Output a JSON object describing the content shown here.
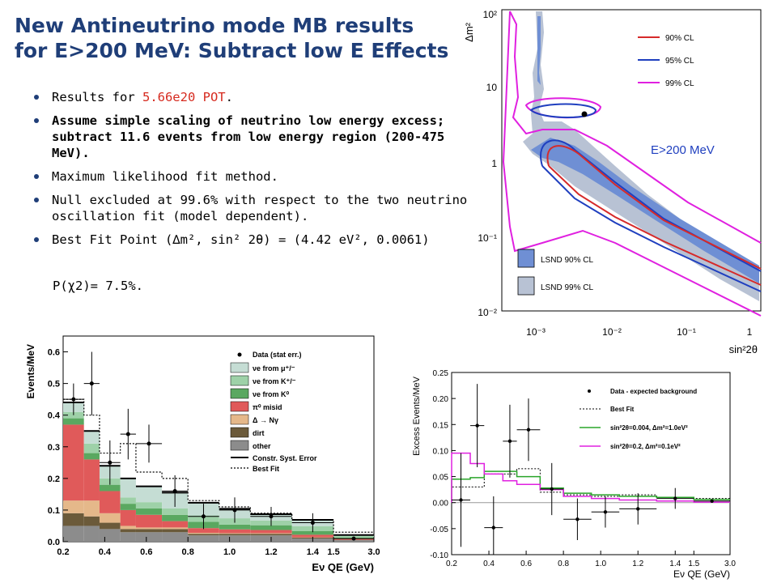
{
  "slide": {
    "title_line1": "New Antineutrino mode MB results",
    "title_line2": "for E>200 MeV:  Subtract low E Effects",
    "bullets": [
      {
        "prefix": "Results for ",
        "highlight": "5.66e20 POT",
        "suffix": "."
      },
      {
        "text": "Assume simple scaling of neutrino low energy excess; subtract 11.6 events from low energy region (200-475 MeV)."
      },
      {
        "text": "Maximum likelihood fit method."
      },
      {
        "text": "Null excluded at 99.6% with respect to the two neutrino oscillation fit (model dependent)."
      },
      {
        "text": "Best Fit Point (∆m², sin² 2θ) = (4.42 eV², 0.0061)"
      }
    ],
    "pchi": "P(χ2)= 7.5%."
  },
  "chart_data": [
    {
      "type": "contour",
      "xlabel": "sin²2θ",
      "ylabel": "Δm²",
      "xscale": "log",
      "yscale": "log",
      "xlim": [
        0.0005,
        1
      ],
      "ylim": [
        0.01,
        100
      ],
      "xticklabels": [
        "10⁻³",
        "10⁻²",
        "10⁻¹",
        "1"
      ],
      "yticklabels": [
        "10²",
        "10",
        "1",
        "10⁻¹",
        "10⁻²"
      ],
      "annotation": "E>200 MeV",
      "legend": [
        {
          "label": "90% CL",
          "color": "#d62a2a"
        },
        {
          "label": "95% CL",
          "color": "#1f3fbf"
        },
        {
          "label": "99% CL",
          "color": "#e020e0"
        }
      ],
      "lsnd_legend": [
        {
          "label": "LSND 90% CL",
          "color": "#6f8fd4"
        },
        {
          "label": "LSND 99% CL",
          "color": "#b8c2d4"
        }
      ],
      "best_fit": {
        "x": 0.0061,
        "y": 4.42
      }
    },
    {
      "type": "stacked_bar",
      "xlabel": "Eν QE (GeV)",
      "ylabel": "Events/MeV",
      "xticklabels": [
        "0.2",
        "0.4",
        "0.6",
        "0.8",
        "1.0",
        "1.2",
        "1.4",
        "1.5",
        "3.0"
      ],
      "ylim": [
        0,
        0.65
      ],
      "yticks": [
        0.0,
        0.1,
        0.2,
        0.3,
        0.4,
        0.5,
        0.6
      ],
      "bins": [
        [
          0.2,
          0.3
        ],
        [
          0.3,
          0.375
        ],
        [
          0.375,
          0.475
        ],
        [
          0.475,
          0.55
        ],
        [
          0.55,
          0.675
        ],
        [
          0.675,
          0.8
        ],
        [
          0.8,
          0.95
        ],
        [
          0.95,
          1.1
        ],
        [
          1.1,
          1.3
        ],
        [
          1.3,
          1.5
        ],
        [
          1.5,
          3.0
        ]
      ],
      "series": [
        {
          "name": "other",
          "color": "#8c8c8c",
          "values": [
            0.05,
            0.05,
            0.04,
            0.03,
            0.03,
            0.03,
            0.02,
            0.02,
            0.02,
            0.01,
            0.005
          ]
        },
        {
          "name": "dirt",
          "color": "#6b5a3a",
          "values": [
            0.04,
            0.03,
            0.02,
            0.01,
            0.01,
            0.01,
            0.005,
            0.005,
            0.005,
            0.003,
            0.001
          ]
        },
        {
          "name": "Δ → Nγ",
          "color": "#e5b88a",
          "values": [
            0.04,
            0.05,
            0.03,
            0.01,
            0.005,
            0.005,
            0.003,
            0.002,
            0.002,
            0.001,
            0.0
          ]
        },
        {
          "name": "π⁰ misid",
          "color": "#e05a5a",
          "values": [
            0.24,
            0.13,
            0.07,
            0.05,
            0.04,
            0.02,
            0.015,
            0.012,
            0.01,
            0.008,
            0.003
          ]
        },
        {
          "name": "νe from K⁰",
          "color": "#5aa860",
          "values": [
            0.02,
            0.02,
            0.02,
            0.02,
            0.02,
            0.02,
            0.02,
            0.015,
            0.015,
            0.012,
            0.004
          ]
        },
        {
          "name": "νe from K⁺/⁻",
          "color": "#9ed1a8",
          "values": [
            0.02,
            0.03,
            0.02,
            0.02,
            0.02,
            0.02,
            0.02,
            0.02,
            0.015,
            0.015,
            0.005
          ]
        },
        {
          "name": "νe from μ⁺/⁻",
          "color": "#c5ddd4",
          "values": [
            0.03,
            0.04,
            0.04,
            0.06,
            0.05,
            0.05,
            0.04,
            0.03,
            0.02,
            0.02,
            0.003
          ]
        }
      ],
      "best_fit": [
        0.45,
        0.4,
        0.28,
        0.31,
        0.22,
        0.2,
        0.13,
        0.11,
        0.09,
        0.07,
        0.03
      ],
      "data_points": [
        {
          "x": 0.25,
          "y": 0.45,
          "err": 0.05
        },
        {
          "x": 0.3375,
          "y": 0.5,
          "err": 0.1
        },
        {
          "x": 0.425,
          "y": 0.25,
          "err": 0.07
        },
        {
          "x": 0.5125,
          "y": 0.34,
          "err": 0.08
        },
        {
          "x": 0.6125,
          "y": 0.31,
          "err": 0.06
        },
        {
          "x": 0.7375,
          "y": 0.16,
          "err": 0.05
        },
        {
          "x": 0.875,
          "y": 0.08,
          "err": 0.04
        },
        {
          "x": 1.025,
          "y": 0.1,
          "err": 0.04
        },
        {
          "x": 1.2,
          "y": 0.08,
          "err": 0.03
        },
        {
          "x": 1.4,
          "y": 0.06,
          "err": 0.03
        },
        {
          "x": 2.25,
          "y": 0.01,
          "err": 0.005
        }
      ],
      "legend": [
        "Data (stat err.)",
        "νe from μ⁺/⁻",
        "νe from K⁺/⁻",
        "νe from K⁰",
        "π⁰ misid",
        "Δ → Nγ",
        "dirt",
        "other",
        "Constr. Syst. Error",
        "Best Fit"
      ]
    },
    {
      "type": "step_line",
      "xlabel": "Eν QE (GeV)",
      "ylabel": "Excess Events/MeV",
      "ylim": [
        -0.1,
        0.25
      ],
      "yticks": [
        -0.1,
        -0.05,
        0.0,
        0.05,
        0.1,
        0.15,
        0.2,
        0.25
      ],
      "xticklabels": [
        "0.2",
        "0.4",
        "0.6",
        "0.8",
        "1.0",
        "1.2",
        "1.4",
        "1.5",
        "3.0"
      ],
      "bins": [
        [
          0.2,
          0.3
        ],
        [
          0.3,
          0.375
        ],
        [
          0.375,
          0.475
        ],
        [
          0.475,
          0.55
        ],
        [
          0.55,
          0.675
        ],
        [
          0.675,
          0.8
        ],
        [
          0.8,
          0.95
        ],
        [
          0.95,
          1.1
        ],
        [
          1.1,
          1.3
        ],
        [
          1.3,
          1.5
        ],
        [
          1.5,
          3.0
        ]
      ],
      "data_points": [
        {
          "x": 0.25,
          "y": 0.005,
          "err": 0.09
        },
        {
          "x": 0.3375,
          "y": 0.148,
          "err": 0.08
        },
        {
          "x": 0.425,
          "y": -0.048,
          "err": 0.06
        },
        {
          "x": 0.5125,
          "y": 0.118,
          "err": 0.07
        },
        {
          "x": 0.6125,
          "y": 0.14,
          "err": 0.06
        },
        {
          "x": 0.7375,
          "y": 0.026,
          "err": 0.05
        },
        {
          "x": 0.875,
          "y": -0.032,
          "err": 0.04
        },
        {
          "x": 1.025,
          "y": -0.018,
          "err": 0.03
        },
        {
          "x": 1.2,
          "y": -0.012,
          "err": 0.03
        },
        {
          "x": 1.4,
          "y": 0.008,
          "err": 0.02
        },
        {
          "x": 2.25,
          "y": 0.003,
          "err": 0.003
        }
      ],
      "series": [
        {
          "name": "Best Fit",
          "style": "dotted",
          "color": "#000000",
          "values": [
            0.03,
            0.03,
            0.055,
            0.055,
            0.065,
            0.02,
            0.015,
            0.012,
            0.015,
            0.01,
            0.008
          ]
        },
        {
          "name": "sin²2θ=0.004, Δm²=1.0eV²",
          "style": "solid",
          "color": "#2aa52a",
          "values": [
            0.045,
            0.048,
            0.06,
            0.06,
            0.05,
            0.028,
            0.018,
            0.015,
            0.012,
            0.01,
            0.006
          ]
        },
        {
          "name": "sin²2θ=0.2, Δm²=0.1eV²",
          "style": "solid",
          "color": "#e020e0",
          "values": [
            0.095,
            0.075,
            0.055,
            0.042,
            0.035,
            0.025,
            0.012,
            0.008,
            0.005,
            0.003,
            0.001
          ]
        }
      ],
      "legend": [
        "Data - expected background",
        "Best Fit",
        "sin²2θ=0.004, Δm²=1.0eV²",
        "sin²2θ=0.2, Δm²=0.1eV²"
      ]
    }
  ]
}
